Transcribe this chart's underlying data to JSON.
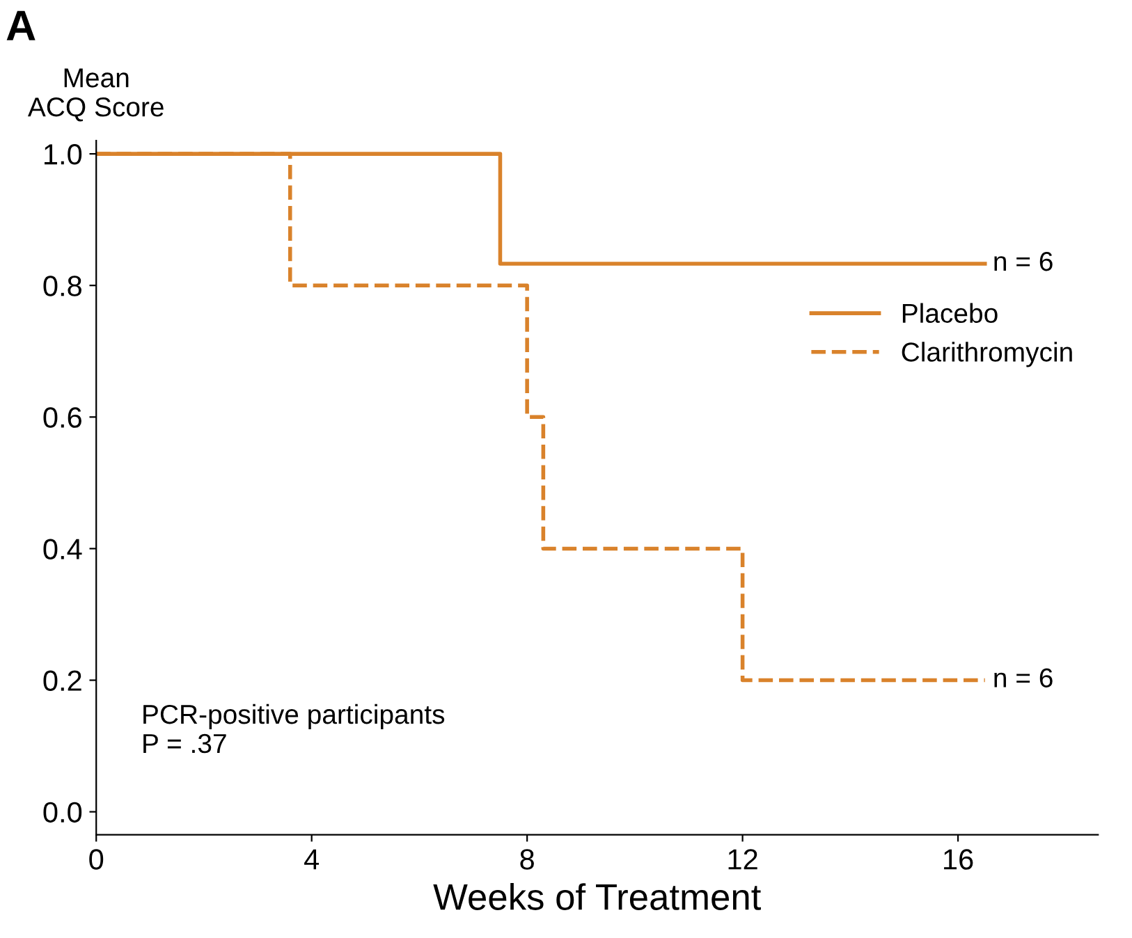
{
  "chart_data": {
    "type": "step",
    "ylabel": "Mean\nACQ Score",
    "xlabel": "Weeks of Treatment",
    "series": [
      {
        "name": "Placebo",
        "color": "#d9822b",
        "line_style": "solid",
        "x": [
          0,
          7.5,
          16.5
        ],
        "values": [
          1.0,
          0.833,
          0.833
        ]
      },
      {
        "name": "Clarithromycin",
        "color": "#d9822b",
        "line_style": "dashed",
        "x": [
          0,
          3.6,
          8.0,
          8.3,
          12.0,
          16.5
        ],
        "values": [
          1.0,
          0.8,
          0.6,
          0.4,
          0.2,
          0.2
        ]
      }
    ],
    "xlim": [
      0,
      18.6
    ],
    "xticks": [
      0,
      4,
      8,
      12,
      16
    ],
    "ylim": [
      -0.035,
      1.02
    ],
    "yticks": [
      {
        "value": 0,
        "label": "0.0"
      },
      {
        "value": 0.2,
        "label": "0.2"
      },
      {
        "value": 0.4,
        "label": "0.4"
      },
      {
        "value": 0.6,
        "label": "0.6"
      },
      {
        "value": 0.8,
        "label": "0.8"
      },
      {
        "value": 1,
        "label": "1.0"
      }
    ],
    "annotations": [
      "A",
      {
        "text": "n = 6",
        "x": 16.5,
        "y": 0.833
      },
      {
        "text": "n = 6",
        "x": 16.5,
        "y": 0.2
      },
      "PCR-positive participants\nP = .37"
    ],
    "legend": "right",
    "grid": false
  }
}
